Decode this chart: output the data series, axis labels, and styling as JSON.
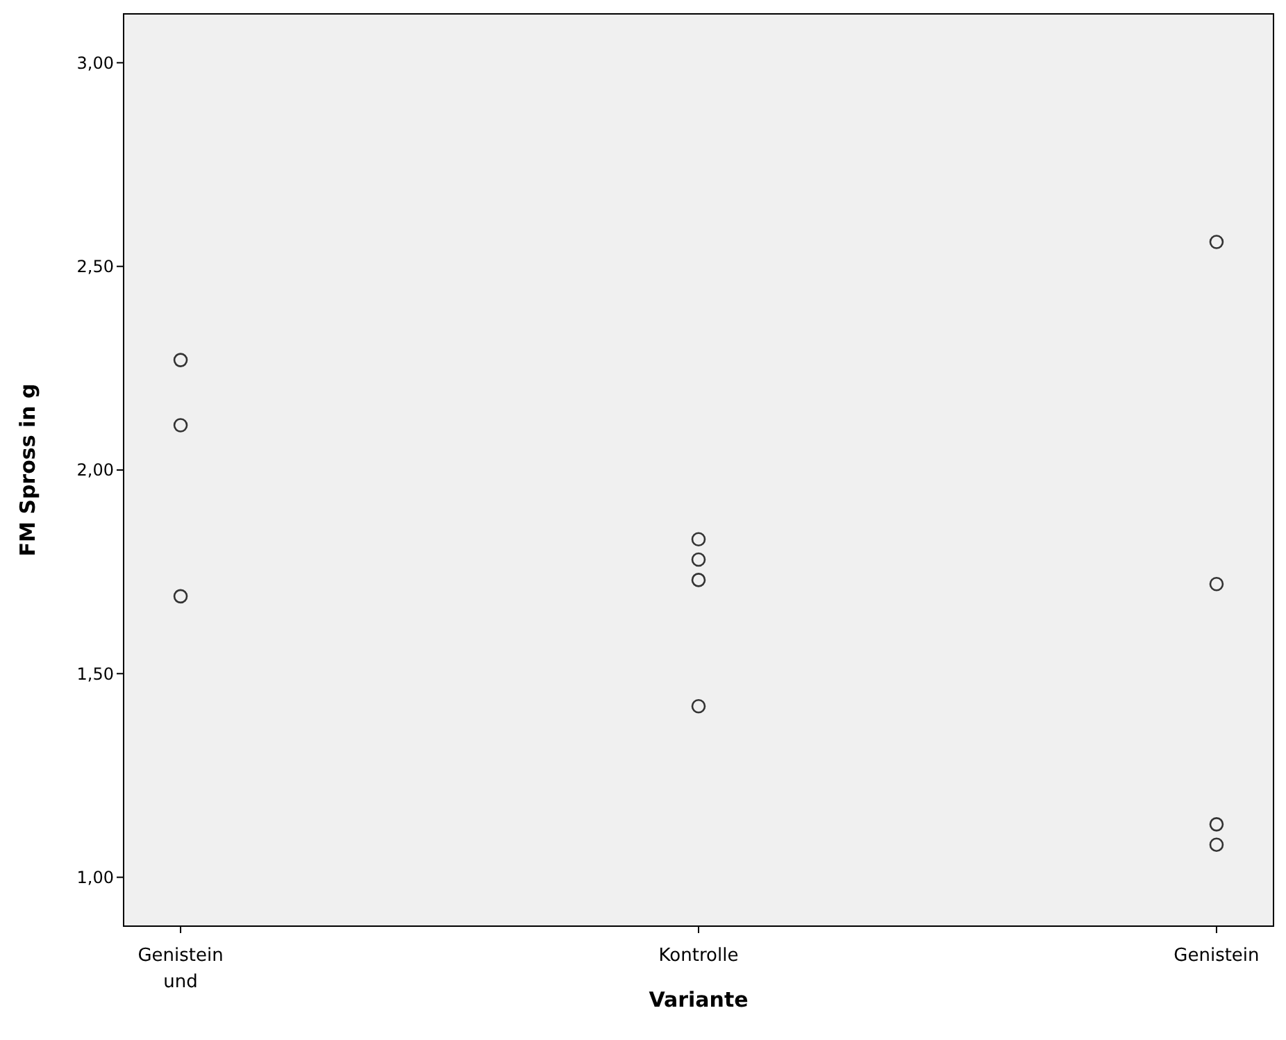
{
  "chart_data": {
    "type": "scatter",
    "xlabel": "Variante",
    "ylabel": "FM Spross in g",
    "categories": [
      "Genistein und",
      "Kontrolle",
      "Genistein"
    ],
    "series": [
      {
        "color": "#333333",
        "x": [
          "Genistein und",
          "Genistein und",
          "Genistein und"
        ],
        "values": [
          2.27,
          2.11,
          1.69
        ]
      },
      {
        "color": "#333333",
        "x": [
          "Kontrolle",
          "Kontrolle",
          "Kontrolle",
          "Kontrolle"
        ],
        "values": [
          1.83,
          1.78,
          1.73,
          1.42
        ]
      },
      {
        "color": "#333333",
        "x": [
          "Genistein",
          "Genistein",
          "Genistein",
          "Genistein"
        ],
        "values": [
          2.56,
          1.72,
          1.13,
          1.08
        ]
      }
    ],
    "marker": "circle",
    "grid": false,
    "ylim": [
      0.88,
      3.12
    ],
    "yticks": [
      {
        "value": 1,
        "label": "1,00"
      },
      {
        "value": 1.5,
        "label": "1,50"
      },
      {
        "value": 2,
        "label": "2,00"
      },
      {
        "value": 2.5,
        "label": "2,50"
      },
      {
        "value": 3,
        "label": "3,00"
      }
    ]
  }
}
